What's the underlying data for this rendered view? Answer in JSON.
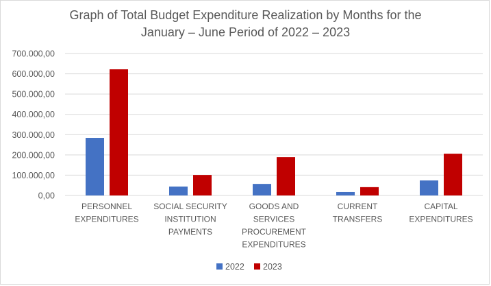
{
  "chart_data": {
    "type": "bar",
    "title_lines": [
      "Graph of Total Budget Expenditure Realization by Months for the",
      "January – June Period of 2022 – 2023"
    ],
    "title": "Graph of Total Budget Expenditure Realization by Months for the January – June Period of 2022 – 2023",
    "xlabel": "",
    "ylabel": "",
    "categories": [
      [
        "PERSONNEL",
        "EXPENDITURES"
      ],
      [
        "SOCIAL SECURITY",
        "INSTITUTION",
        "PAYMENTS"
      ],
      [
        "GOODS AND",
        "SERVICES",
        "PROCUREMENT",
        "EXPENDITURES"
      ],
      [
        "CURRENT",
        "TRANSFERS"
      ],
      [
        "CAPITAL",
        "EXPENDITURES"
      ]
    ],
    "series": [
      {
        "name": "2022",
        "color": "#4472c4",
        "values": [
          284000,
          44000,
          57000,
          17000,
          74000
        ]
      },
      {
        "name": "2023",
        "color": "#c00000",
        "values": [
          622000,
          101000,
          189000,
          41000,
          206000
        ]
      }
    ],
    "ylim": [
      0,
      700000
    ],
    "yticks": [
      0,
      100000,
      200000,
      300000,
      400000,
      500000,
      600000,
      700000
    ],
    "ytick_labels": [
      "0,00",
      "100.000,00",
      "200.000,00",
      "300.000,00",
      "400.000,00",
      "500.000,00",
      "600.000,00",
      "700.000,00"
    ],
    "grid": true,
    "legend_position": "bottom"
  }
}
